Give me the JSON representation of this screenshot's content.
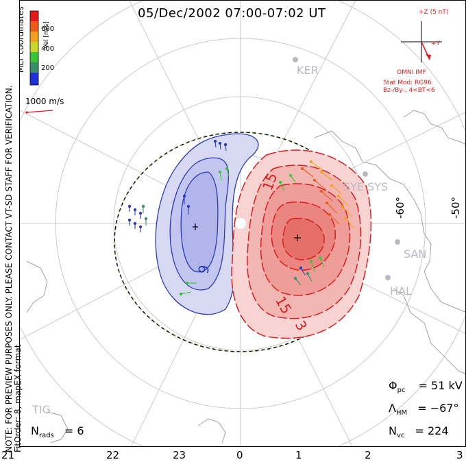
{
  "header": {
    "title": "05/Dec/2002 07:00-07:02 UT"
  },
  "side_note": {
    "line1": "NOTE: FOR PREVIEW PURPOSES ONLY. PLEASE CONTACT VT-SD STAFF FOR VERIFICATION.",
    "line2": "FitOrder: 8, mapEX format"
  },
  "coordinates_label": "MLT coordinates",
  "color_bar": {
    "label": "Vel [m/s]",
    "ticks": [
      "200",
      "400",
      "600"
    ],
    "colors": [
      "#1f2fd6",
      "#3a8f6a",
      "#39c43a",
      "#c9d62a",
      "#f3a11c",
      "#ef5a1a",
      "#e2181a"
    ]
  },
  "reference_vector": {
    "label": "1000 m/s",
    "color": "#e2181a"
  },
  "imf": {
    "z_label": "+Z (5 nT)",
    "y_label": "+Y",
    "source": "OMNI IMF",
    "model_line1": "Stat Mod: RG96",
    "model_line2": "Bz-/By-, 4<BT<6",
    "color": "#e2181a"
  },
  "stations": [
    "KER",
    "SYE SYS",
    "SAN",
    "HAL",
    "TIG"
  ],
  "latitude_labels": [
    "-60°",
    "-50°"
  ],
  "mlt_ticks": [
    "21",
    "22",
    "23",
    "0",
    "1",
    "2",
    "3"
  ],
  "contour_labels": [
    "15",
    "9",
    "15",
    "3"
  ],
  "stats": {
    "phi_symbol": "Φ",
    "phi_sub": "pc",
    "phi_value": "= 51 kV",
    "lambda_symbol": "Λ",
    "lambda_sub": "HM",
    "lambda_value": "= −67°",
    "nvc_symbol": "N",
    "nvc_sub": "vc",
    "nvc_value": "= 224",
    "nrads_symbol": "N",
    "nrads_sub": "rads",
    "nrads_value": "= 6"
  },
  "colors": {
    "negative_cell": "#2a3ab8",
    "positive_cell": "#dc2020",
    "boundary": "#2a9a2a",
    "grid": "#c8c8c8",
    "coast": "#9a9a9a"
  }
}
